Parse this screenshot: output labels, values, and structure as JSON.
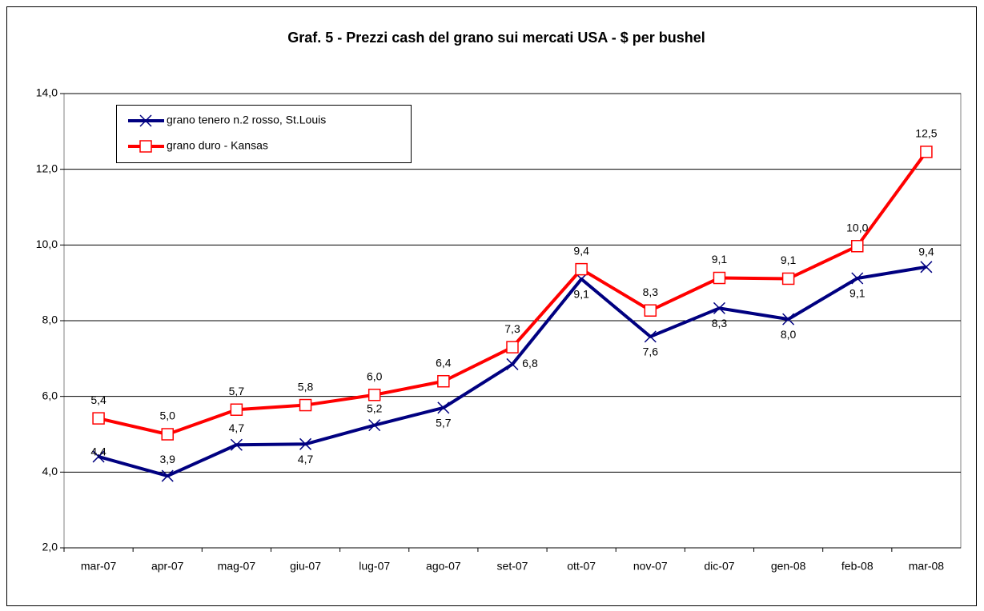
{
  "chart_data": {
    "type": "line",
    "title": "Graf. 5 - Prezzi cash del grano sui mercati USA -  $ per bushel",
    "categories": [
      "mar-07",
      "apr-07",
      "mag-07",
      "giu-07",
      "lug-07",
      "ago-07",
      "set-07",
      "ott-07",
      "nov-07",
      "dic-07",
      "gen-08",
      "feb-08",
      "mar-08"
    ],
    "series": [
      {
        "name": "grano tenero n.2 rosso, St.Louis",
        "color": "#000080",
        "marker": "x",
        "values": [
          4.41,
          3.9,
          4.72,
          4.74,
          5.24,
          5.7,
          6.85,
          9.1,
          7.58,
          8.33,
          8.04,
          9.12,
          9.42
        ],
        "value_labels": [
          "4,4",
          "3,9",
          "4,7",
          "4,7",
          "5,2",
          "5,7",
          "6,8",
          "9,1",
          "7,6",
          "8,3",
          "8,0",
          "9,1",
          "9,4"
        ]
      },
      {
        "name": "grano duro - Kansas",
        "color": "#ff0000",
        "marker": "square",
        "values": [
          5.42,
          5.0,
          5.65,
          5.77,
          6.04,
          6.4,
          7.3,
          9.36,
          8.27,
          9.13,
          9.11,
          9.97,
          12.46
        ],
        "value_labels": [
          "5,4",
          "5,0",
          "5,7",
          "5,8",
          "6,0",
          "6,4",
          "7,3",
          "9,4",
          "8,3",
          "9,1",
          "9,1",
          "10,0",
          "12,5"
        ]
      }
    ],
    "ylim": [
      2,
      14
    ],
    "yticks": [
      {
        "value": 2,
        "label": "2,0"
      },
      {
        "value": 4,
        "label": "4,0"
      },
      {
        "value": 6,
        "label": "6,0"
      },
      {
        "value": 8,
        "label": "8,0"
      },
      {
        "value": 10,
        "label": "10,0"
      },
      {
        "value": 12,
        "label": "12,0"
      },
      {
        "value": 14,
        "label": "14,0"
      }
    ],
    "grid": true,
    "legend": "upper left"
  }
}
